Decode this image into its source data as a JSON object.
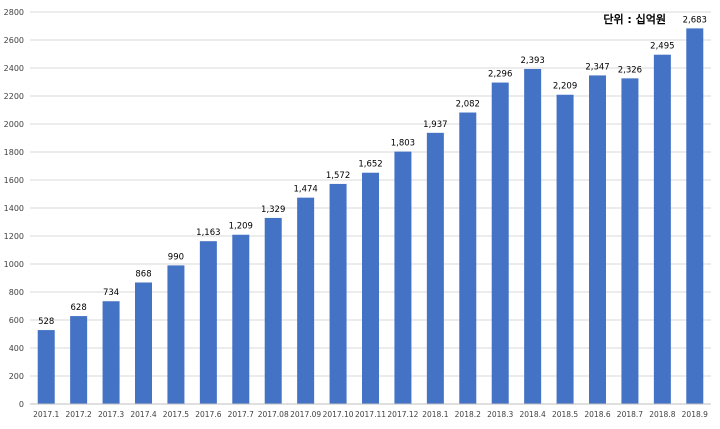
{
  "chart_data": {
    "type": "bar",
    "unit_label": "단위 : 십억원",
    "categories": [
      "2017.1",
      "2017.2",
      "2017.3",
      "2017.4",
      "2017.5",
      "2017.6",
      "2017.7",
      "2017.08",
      "2017.09",
      "2017.10",
      "2017.11",
      "2017.12",
      "2018.1",
      "2018.2",
      "2018.3",
      "2018.4",
      "2018.5",
      "2018.6",
      "2018.7",
      "2018.8",
      "2018.9"
    ],
    "values": [
      528,
      628,
      734,
      868,
      990,
      1163,
      1209,
      1329,
      1474,
      1572,
      1652,
      1803,
      1937,
      2082,
      2296,
      2393,
      2209,
      2347,
      2326,
      2495,
      2683
    ],
    "data_labels": [
      "528",
      "628",
      "734",
      "868",
      "990",
      "1,163",
      "1,209",
      "1,329",
      "1,474",
      "1,572",
      "1,652",
      "1,803",
      "1,937",
      "2,082",
      "2,296",
      "2,393",
      "2,209",
      "2,347",
      "2,326",
      "2,495",
      "2,683"
    ],
    "yticks": [
      0,
      200,
      400,
      600,
      800,
      1000,
      1200,
      1400,
      1600,
      1800,
      2000,
      2200,
      2400,
      2600,
      2800
    ],
    "ylim": [
      0,
      2800
    ],
    "grid": true,
    "bar_color": "#4472C4",
    "grid_color": "#d9d9d9"
  }
}
